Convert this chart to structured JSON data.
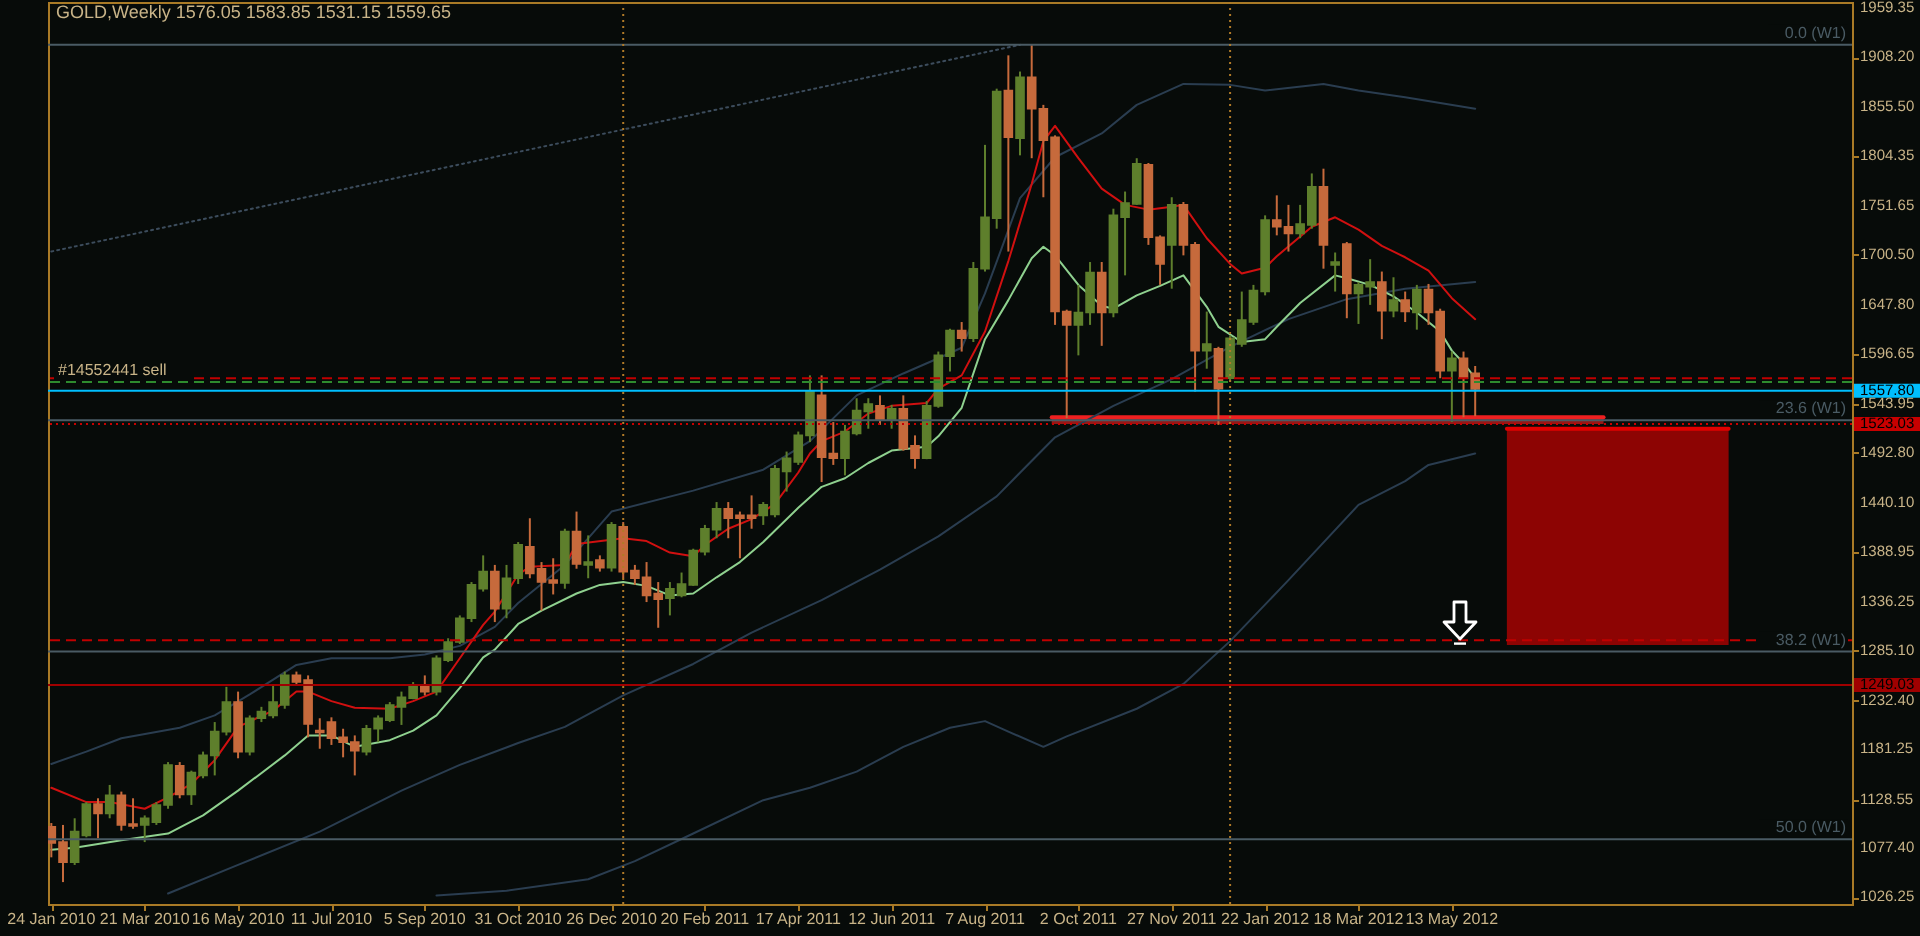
{
  "chart_data": {
    "type": "candlestick",
    "title": "GOLD,Weekly 1576.05 1583.85 1531.15 1559.65",
    "x": [
      "2010-01-24",
      "2010-01-31",
      "2010-02-07",
      "2010-02-14",
      "2010-02-21",
      "2010-02-28",
      "2010-03-07",
      "2010-03-14",
      "2010-03-21",
      "2010-03-28",
      "2010-04-04",
      "2010-04-11",
      "2010-04-18",
      "2010-04-25",
      "2010-05-02",
      "2010-05-09",
      "2010-05-16",
      "2010-05-23",
      "2010-05-30",
      "2010-06-06",
      "2010-06-13",
      "2010-06-20",
      "2010-06-27",
      "2010-07-04",
      "2010-07-11",
      "2010-07-18",
      "2010-07-25",
      "2010-08-01",
      "2010-08-08",
      "2010-08-15",
      "2010-08-22",
      "2010-08-29",
      "2010-09-05",
      "2010-09-12",
      "2010-09-19",
      "2010-09-26",
      "2010-10-03",
      "2010-10-10",
      "2010-10-17",
      "2010-10-24",
      "2010-10-31",
      "2010-11-07",
      "2010-11-14",
      "2010-11-21",
      "2010-11-28",
      "2010-12-05",
      "2010-12-12",
      "2010-12-19",
      "2010-12-26",
      "2011-01-02",
      "2011-01-09",
      "2011-01-16",
      "2011-01-23",
      "2011-01-30",
      "2011-02-06",
      "2011-02-13",
      "2011-02-20",
      "2011-02-27",
      "2011-03-06",
      "2011-03-13",
      "2011-03-20",
      "2011-03-27",
      "2011-04-03",
      "2011-04-10",
      "2011-04-17",
      "2011-04-24",
      "2011-05-01",
      "2011-05-08",
      "2011-05-15",
      "2011-05-22",
      "2011-05-29",
      "2011-06-05",
      "2011-06-12",
      "2011-06-19",
      "2011-06-26",
      "2011-07-03",
      "2011-07-10",
      "2011-07-17",
      "2011-07-24",
      "2011-07-31",
      "2011-08-07",
      "2011-08-14",
      "2011-08-21",
      "2011-08-28",
      "2011-09-04",
      "2011-09-11",
      "2011-09-18",
      "2011-09-25",
      "2011-10-02",
      "2011-10-09",
      "2011-10-16",
      "2011-10-23",
      "2011-10-30",
      "2011-11-06",
      "2011-11-13",
      "2011-11-20",
      "2011-11-27",
      "2011-12-04",
      "2011-12-11",
      "2011-12-18",
      "2011-12-25",
      "2012-01-01",
      "2012-01-08",
      "2012-01-15",
      "2012-01-22",
      "2012-01-29",
      "2012-02-05",
      "2012-02-12",
      "2012-02-19",
      "2012-02-26",
      "2012-03-04",
      "2012-03-11",
      "2012-03-18",
      "2012-03-25",
      "2012-04-01",
      "2012-04-08",
      "2012-04-15",
      "2012-04-22",
      "2012-04-29",
      "2012-05-06",
      "2012-05-13",
      "2012-05-20",
      "2012-05-27"
    ],
    "ohlc": [
      [
        1100,
        1104,
        1068,
        1083
      ],
      [
        1084,
        1102,
        1042,
        1063
      ],
      [
        1063,
        1109,
        1060,
        1095
      ],
      [
        1091,
        1126,
        1089,
        1124
      ],
      [
        1124,
        1130,
        1088,
        1114
      ],
      [
        1114,
        1144,
        1109,
        1133
      ],
      [
        1133,
        1137,
        1096,
        1102
      ],
      [
        1103,
        1130,
        1098,
        1101
      ],
      [
        1102,
        1112,
        1084,
        1109
      ],
      [
        1105,
        1126,
        1102,
        1123
      ],
      [
        1123,
        1168,
        1119,
        1165
      ],
      [
        1164,
        1168,
        1130,
        1134
      ],
      [
        1134,
        1159,
        1123,
        1157
      ],
      [
        1154,
        1179,
        1151,
        1175
      ],
      [
        1175,
        1210,
        1154,
        1200
      ],
      [
        1200,
        1247,
        1196,
        1231
      ],
      [
        1231,
        1242,
        1172,
        1179
      ],
      [
        1179,
        1217,
        1175,
        1214
      ],
      [
        1214,
        1226,
        1210,
        1221
      ],
      [
        1217,
        1249,
        1214,
        1231
      ],
      [
        1228,
        1263,
        1224,
        1259
      ],
      [
        1259,
        1263,
        1249,
        1252
      ],
      [
        1254,
        1259,
        1194,
        1208
      ],
      [
        1201,
        1214,
        1182,
        1199
      ],
      [
        1210,
        1215,
        1186,
        1193
      ],
      [
        1194,
        1203,
        1173,
        1189
      ],
      [
        1189,
        1196,
        1154,
        1180
      ],
      [
        1179,
        1207,
        1175,
        1203
      ],
      [
        1203,
        1217,
        1189,
        1214
      ],
      [
        1212,
        1231,
        1210,
        1228
      ],
      [
        1226,
        1242,
        1207,
        1236
      ],
      [
        1235,
        1252,
        1234,
        1249
      ],
      [
        1249,
        1259,
        1238,
        1242
      ],
      [
        1242,
        1280,
        1238,
        1277
      ],
      [
        1275,
        1298,
        1273,
        1294
      ],
      [
        1294,
        1322,
        1292,
        1319
      ],
      [
        1319,
        1357,
        1315,
        1354
      ],
      [
        1350,
        1385,
        1347,
        1368
      ],
      [
        1368,
        1375,
        1315,
        1329
      ],
      [
        1329,
        1375,
        1319,
        1361
      ],
      [
        1361,
        1399,
        1355,
        1396
      ],
      [
        1394,
        1424,
        1361,
        1366
      ],
      [
        1371,
        1378,
        1327,
        1357
      ],
      [
        1359,
        1382,
        1344,
        1356
      ],
      [
        1356,
        1413,
        1350,
        1410
      ],
      [
        1410,
        1431,
        1371,
        1376
      ],
      [
        1375,
        1406,
        1361,
        1378
      ],
      [
        1380,
        1385,
        1368,
        1372
      ],
      [
        1372,
        1420,
        1368,
        1417
      ],
      [
        1415,
        1420,
        1361,
        1368
      ],
      [
        1369,
        1375,
        1354,
        1361
      ],
      [
        1362,
        1378,
        1336,
        1343
      ],
      [
        1345,
        1357,
        1309,
        1339
      ],
      [
        1340,
        1357,
        1322,
        1350
      ],
      [
        1343,
        1367,
        1341,
        1355
      ],
      [
        1354,
        1392,
        1353,
        1390
      ],
      [
        1389,
        1417,
        1385,
        1413
      ],
      [
        1412,
        1441,
        1403,
        1434
      ],
      [
        1434,
        1441,
        1403,
        1424
      ],
      [
        1427,
        1431,
        1382,
        1424
      ],
      [
        1427,
        1448,
        1413,
        1424
      ],
      [
        1427,
        1441,
        1417,
        1438
      ],
      [
        1428,
        1480,
        1425,
        1476
      ],
      [
        1473,
        1494,
        1452,
        1487
      ],
      [
        1483,
        1515,
        1480,
        1511
      ],
      [
        1511,
        1574,
        1504,
        1557
      ],
      [
        1553,
        1574,
        1462,
        1488
      ],
      [
        1492,
        1525,
        1480,
        1487
      ],
      [
        1487,
        1522,
        1469,
        1515
      ],
      [
        1513,
        1550,
        1511,
        1537
      ],
      [
        1536,
        1550,
        1518,
        1544
      ],
      [
        1542,
        1553,
        1522,
        1528
      ],
      [
        1528,
        1543,
        1518,
        1539
      ],
      [
        1539,
        1553,
        1495,
        1497
      ],
      [
        1500,
        1511,
        1476,
        1487
      ],
      [
        1487,
        1547,
        1486,
        1542
      ],
      [
        1542,
        1599,
        1540,
        1595
      ],
      [
        1594,
        1623,
        1578,
        1621
      ],
      [
        1621,
        1630,
        1599,
        1613
      ],
      [
        1613,
        1693,
        1609,
        1686
      ],
      [
        1686,
        1816,
        1683,
        1740
      ],
      [
        1739,
        1875,
        1728,
        1872
      ],
      [
        1873,
        1910,
        1704,
        1824
      ],
      [
        1823,
        1893,
        1805,
        1887
      ],
      [
        1887,
        1921,
        1802,
        1854
      ],
      [
        1854,
        1858,
        1761,
        1821
      ],
      [
        1824,
        1826,
        1627,
        1641
      ],
      [
        1641,
        1643,
        1529,
        1627
      ],
      [
        1627,
        1669,
        1595,
        1640
      ],
      [
        1640,
        1693,
        1627,
        1682
      ],
      [
        1682,
        1693,
        1605,
        1640
      ],
      [
        1640,
        1749,
        1635,
        1742
      ],
      [
        1740,
        1767,
        1679,
        1755
      ],
      [
        1754,
        1802,
        1753,
        1796
      ],
      [
        1795,
        1797,
        1711,
        1719
      ],
      [
        1719,
        1721,
        1669,
        1691
      ],
      [
        1711,
        1761,
        1665,
        1753
      ],
      [
        1753,
        1756,
        1700,
        1711
      ],
      [
        1711,
        1714,
        1557,
        1600
      ],
      [
        1600,
        1641,
        1581,
        1607
      ],
      [
        1602,
        1604,
        1522,
        1560
      ],
      [
        1571,
        1616,
        1567,
        1613
      ],
      [
        1607,
        1662,
        1604,
        1632
      ],
      [
        1630,
        1669,
        1627,
        1663
      ],
      [
        1662,
        1742,
        1658,
        1737
      ],
      [
        1737,
        1763,
        1721,
        1730
      ],
      [
        1730,
        1753,
        1704,
        1723
      ],
      [
        1723,
        1753,
        1718,
        1733
      ],
      [
        1732,
        1786,
        1728,
        1772
      ],
      [
        1772,
        1791,
        1686,
        1711
      ],
      [
        1690,
        1703,
        1662,
        1693
      ],
      [
        1712,
        1714,
        1634,
        1660
      ],
      [
        1660,
        1672,
        1628,
        1669
      ],
      [
        1667,
        1696,
        1648,
        1672
      ],
      [
        1672,
        1683,
        1612,
        1642
      ],
      [
        1642,
        1677,
        1635,
        1653
      ],
      [
        1653,
        1662,
        1630,
        1641
      ],
      [
        1640,
        1669,
        1622,
        1664
      ],
      [
        1664,
        1670,
        1627,
        1640
      ],
      [
        1641,
        1644,
        1571,
        1579
      ],
      [
        1579,
        1599,
        1525,
        1592
      ],
      [
        1592,
        1599,
        1530,
        1571
      ],
      [
        1576.05,
        1583.85,
        1531.15,
        1559.65
      ]
    ],
    "colors": [
      "#c66a3c",
      "#c66a3c",
      "#5e7f2c",
      "#5e7f2c",
      "#c66a3c",
      "#5e7f2c",
      "#c66a3c",
      "#c66a3c",
      "#5e7f2c",
      "#5e7f2c",
      "#5e7f2c",
      "#c66a3c",
      "#5e7f2c",
      "#5e7f2c",
      "#5e7f2c",
      "#5e7f2c",
      "#c66a3c",
      "#5e7f2c",
      "#5e7f2c",
      "#5e7f2c",
      "#5e7f2c",
      "#c66a3c",
      "#c66a3c",
      "#c66a3c",
      "#c66a3c",
      "#c66a3c",
      "#c66a3c",
      "#5e7f2c",
      "#5e7f2c",
      "#5e7f2c",
      "#5e7f2c",
      "#5e7f2c",
      "#c66a3c",
      "#5e7f2c",
      "#5e7f2c",
      "#5e7f2c",
      "#5e7f2c",
      "#5e7f2c",
      "#c66a3c",
      "#5e7f2c",
      "#5e7f2c",
      "#c66a3c",
      "#c66a3c",
      "#c66a3c",
      "#5e7f2c",
      "#c66a3c",
      "#5e7f2c",
      "#c66a3c",
      "#5e7f2c",
      "#c66a3c",
      "#c66a3c",
      "#c66a3c",
      "#c66a3c",
      "#5e7f2c",
      "#5e7f2c",
      "#5e7f2c",
      "#5e7f2c",
      "#5e7f2c",
      "#c66a3c",
      "#c66a3c",
      "#c66a3c",
      "#5e7f2c",
      "#5e7f2c",
      "#5e7f2c",
      "#5e7f2c",
      "#5e7f2c",
      "#c66a3c",
      "#c66a3c",
      "#5e7f2c",
      "#5e7f2c",
      "#5e7f2c",
      "#c66a3c",
      "#5e7f2c",
      "#c66a3c",
      "#c66a3c",
      "#5e7f2c",
      "#5e7f2c",
      "#5e7f2c",
      "#c66a3c",
      "#5e7f2c",
      "#5e7f2c",
      "#5e7f2c",
      "#c66a3c",
      "#5e7f2c",
      "#c66a3c",
      "#c66a3c",
      "#c66a3c",
      "#c66a3c",
      "#5e7f2c",
      "#5e7f2c",
      "#c66a3c",
      "#5e7f2c",
      "#5e7f2c",
      "#5e7f2c",
      "#c66a3c",
      "#c66a3c",
      "#5e7f2c",
      "#c66a3c",
      "#c66a3c",
      "#5e7f2c",
      "#c66a3c",
      "#5e7f2c",
      "#5e7f2c",
      "#5e7f2c",
      "#5e7f2c",
      "#c66a3c",
      "#c66a3c",
      "#5e7f2c",
      "#5e7f2c",
      "#c66a3c",
      "#5e7f2c",
      "#c66a3c",
      "#5e7f2c",
      "#5e7f2c",
      "#c66a3c",
      "#5e7f2c",
      "#c66a3c",
      "#5e7f2c",
      "#c66a3c",
      "#c66a3c",
      "#5e7f2c",
      "#c66a3c",
      "#c66a3c"
    ],
    "series": [
      {
        "type": "line",
        "color": "#e00000",
        "x": [
          "2012-06-15",
          "2012-10-26"
        ],
        "values": [
          1518,
          1518
        ],
        "lower": [
          1291,
          1291
        ],
        "upper": [
          1518,
          1518
        ]
      },
      {
        "type": "line",
        "color": "#ee2020",
        "x": [
          "2011-09-16",
          "2012-08-12"
        ],
        "values": [
          1530,
          1530
        ],
        "lower": [
          1523,
          1523
        ],
        "upper": [
          1530,
          1530
        ]
      },
      {
        "type": "line",
        "color": "#2a3d50",
        "x": [
          "2010-01-24",
          "2010-02-14",
          "2010-03-07",
          "2010-04-11",
          "2010-05-02",
          "2010-05-23",
          "2010-06-20",
          "2010-07-11",
          "2010-08-15",
          "2010-09-05",
          "2010-09-26",
          "2010-10-17",
          "2010-10-31",
          "2010-11-28",
          "2010-12-26",
          "2011-02-13",
          "2011-03-27",
          "2011-04-24",
          "2011-05-22",
          "2011-06-19",
          "2011-07-10",
          "2011-07-24",
          "2011-08-07",
          "2011-08-28",
          "2011-09-18",
          "2011-10-16",
          "2011-11-06",
          "2011-12-04",
          "2012-01-01",
          "2012-01-22",
          "2012-02-26",
          "2012-03-18",
          "2012-04-15",
          "2012-05-06",
          "2012-05-27"
        ],
        "values": [
          1166,
          1179,
          1193,
          1204,
          1217,
          1239,
          1270,
          1277,
          1277,
          1281,
          1290,
          1310,
          1335,
          1375,
          1431,
          1453,
          1475,
          1505,
          1553,
          1576,
          1592,
          1603,
          1660,
          1760,
          1803,
          1828,
          1858,
          1880,
          1879,
          1873,
          1880,
          1873,
          1866,
          1860,
          1854
        ]
      },
      {
        "type": "line",
        "color": "#2a3d50",
        "x": [
          "2010-04-04",
          "2010-05-16",
          "2010-07-04",
          "2010-08-22",
          "2010-09-26",
          "2010-10-31",
          "2010-11-28",
          "2011-01-02",
          "2011-02-13",
          "2011-03-20",
          "2011-05-01",
          "2011-06-05",
          "2011-07-10",
          "2011-08-14",
          "2011-09-18",
          "2011-10-23",
          "2011-11-27",
          "2012-01-01",
          "2012-02-05",
          "2012-03-11",
          "2012-04-15",
          "2012-05-27"
        ],
        "values": [
          1030,
          1060,
          1095,
          1138,
          1165,
          1188,
          1205,
          1238,
          1271,
          1304,
          1338,
          1370,
          1405,
          1447,
          1509,
          1542,
          1570,
          1604,
          1633,
          1654,
          1665,
          1672
        ]
      },
      {
        "type": "line",
        "color": "#2a3d50",
        "x": [
          "2010-09-12",
          "2010-10-24",
          "2010-12-12",
          "2011-01-09",
          "2011-02-13",
          "2011-03-27",
          "2011-04-24",
          "2011-05-22",
          "2011-06-19",
          "2011-07-17",
          "2011-08-07",
          "2011-08-21",
          "2011-09-11",
          "2011-09-25",
          "2011-11-06",
          "2011-12-04",
          "2012-01-01",
          "2012-02-05",
          "2012-03-18",
          "2012-04-15",
          "2012-04-29",
          "2012-05-27"
        ],
        "values": [
          1028,
          1033,
          1045,
          1064,
          1093,
          1128,
          1141,
          1158,
          1184,
          1204,
          1211,
          1200,
          1184,
          1195,
          1224,
          1250,
          1295,
          1359,
          1438,
          1463,
          1480,
          1492
        ]
      },
      {
        "type": "line",
        "color": "#8fd18f",
        "x": [
          "2010-01-24",
          "2010-02-07",
          "2010-03-07",
          "2010-04-04",
          "2010-04-25",
          "2010-05-16",
          "2010-06-13",
          "2010-06-27",
          "2010-07-11",
          "2010-07-25",
          "2010-08-15",
          "2010-08-29",
          "2010-09-12",
          "2010-09-26",
          "2010-10-10",
          "2010-10-17",
          "2010-10-31",
          "2010-11-14",
          "2010-12-05",
          "2010-12-19",
          "2011-01-02",
          "2011-01-16",
          "2011-01-30",
          "2011-02-13",
          "2011-02-27",
          "2011-03-13",
          "2011-03-27",
          "2011-04-17",
          "2011-05-01",
          "2011-05-15",
          "2011-05-29",
          "2011-06-12",
          "2011-07-03",
          "2011-07-10",
          "2011-07-24",
          "2011-08-07",
          "2011-08-21",
          "2011-09-04",
          "2011-09-11",
          "2011-09-18",
          "2011-10-02",
          "2011-10-16",
          "2011-10-23",
          "2011-11-06",
          "2011-11-20",
          "2011-12-04",
          "2011-12-18",
          "2011-12-25",
          "2012-01-08",
          "2012-01-22",
          "2012-01-29",
          "2012-02-12",
          "2012-03-04",
          "2012-03-11",
          "2012-03-25",
          "2012-04-08",
          "2012-04-22",
          "2012-05-06",
          "2012-05-13",
          "2012-05-20",
          "2012-05-27"
        ],
        "values": [
          1076,
          1078,
          1086,
          1093,
          1112,
          1138,
          1175,
          1196,
          1196,
          1184,
          1191,
          1201,
          1217,
          1246,
          1278,
          1286,
          1313,
          1327,
          1345,
          1354,
          1357,
          1353,
          1343,
          1345,
          1362,
          1378,
          1399,
          1435,
          1457,
          1466,
          1482,
          1495,
          1499,
          1510,
          1540,
          1612,
          1653,
          1697,
          1709,
          1700,
          1669,
          1647,
          1644,
          1658,
          1668,
          1679,
          1646,
          1625,
          1609,
          1612,
          1625,
          1650,
          1679,
          1676,
          1669,
          1657,
          1640,
          1620,
          1600,
          1587,
          1571
        ]
      },
      {
        "type": "line",
        "color": "#d01010",
        "x": [
          "2010-01-24",
          "2010-02-14",
          "2010-02-28",
          "2010-03-21",
          "2010-04-04",
          "2010-04-18",
          "2010-05-02",
          "2010-05-16",
          "2010-06-06",
          "2010-06-20",
          "2010-06-27",
          "2010-07-11",
          "2010-07-25",
          "2010-08-15",
          "2010-08-29",
          "2010-09-12",
          "2010-09-26",
          "2010-10-10",
          "2010-10-17",
          "2010-10-31",
          "2010-11-07",
          "2010-11-28",
          "2010-12-05",
          "2011-01-02",
          "2011-01-16",
          "2011-01-30",
          "2011-02-13",
          "2011-02-20",
          "2011-03-06",
          "2011-03-20",
          "2011-04-03",
          "2011-04-17",
          "2011-04-24",
          "2011-05-01",
          "2011-05-15",
          "2011-05-29",
          "2011-06-12",
          "2011-07-03",
          "2011-07-10",
          "2011-07-24",
          "2011-08-07",
          "2011-08-21",
          "2011-09-04",
          "2011-09-11",
          "2011-09-18",
          "2011-10-02",
          "2011-10-16",
          "2011-10-30",
          "2011-11-13",
          "2011-11-27",
          "2011-12-04",
          "2011-12-18",
          "2012-01-01",
          "2012-01-08",
          "2012-01-22",
          "2012-01-29",
          "2012-02-19",
          "2012-03-04",
          "2012-03-18",
          "2012-04-01",
          "2012-04-15",
          "2012-04-29",
          "2012-05-13",
          "2012-05-27"
        ],
        "values": [
          1141,
          1126,
          1126,
          1119,
          1131,
          1145,
          1170,
          1205,
          1222,
          1242,
          1242,
          1232,
          1225,
          1224,
          1232,
          1242,
          1277,
          1312,
          1326,
          1365,
          1373,
          1375,
          1397,
          1403,
          1400,
          1388,
          1384,
          1396,
          1413,
          1423,
          1439,
          1472,
          1492,
          1505,
          1515,
          1534,
          1542,
          1545,
          1560,
          1574,
          1620,
          1694,
          1775,
          1820,
          1836,
          1802,
          1770,
          1753,
          1748,
          1751,
          1753,
          1718,
          1691,
          1681,
          1687,
          1699,
          1730,
          1740,
          1727,
          1710,
          1698,
          1684,
          1655,
          1633
        ]
      },
      {
        "type": "line",
        "color": "#3c4c5c",
        "line_style": "dotted",
        "x": [
          "2010-01-24",
          "2011-08-28"
        ],
        "values": [
          1704,
          1921
        ]
      }
    ],
    "ref_lines": [
      {
        "axis": "y",
        "value": 1921,
        "label": "0.0 (W1)",
        "color": "#4a5b64"
      },
      {
        "axis": "y",
        "value": 1527,
        "label": "23.6 (W1)",
        "color": "#4a5b64"
      },
      {
        "axis": "y",
        "value": 1284,
        "label": "38.2 (W1)",
        "color": "#4a5b64"
      },
      {
        "axis": "y",
        "value": 1087,
        "label": "50.0 (W1)",
        "color": "#4a5b64"
      },
      {
        "axis": "y",
        "value": 1571,
        "color": "#c00000",
        "line_style": "dashed"
      },
      {
        "axis": "y",
        "value": 1567,
        "label": "#14552441 sell",
        "color": "#2e8b2e",
        "line_style": "dashed"
      },
      {
        "axis": "y",
        "value": 1557.8,
        "color": "#00bfff"
      },
      {
        "axis": "y",
        "value": 1523.03,
        "color": "#c80000",
        "line_style": "dotted"
      },
      {
        "axis": "y",
        "value": 1296,
        "color": "#c00000",
        "line_style": "dashed"
      },
      {
        "axis": "y",
        "value": 1249.03,
        "color": "#a00000"
      },
      {
        "axis": "x",
        "value": "2011-01-02",
        "color": "#b07a28",
        "line_style": "dotted"
      },
      {
        "axis": "x",
        "value": "2012-01-01",
        "color": "#b07a28",
        "line_style": "dotted"
      }
    ],
    "xlim": [
      "2010-01-22",
      "2013-01-08"
    ],
    "xticks": [
      {
        "value": "2010-01-24",
        "label": "24 Jan 2010"
      },
      {
        "value": "2010-03-21",
        "label": "21 Mar 2010"
      },
      {
        "value": "2010-05-16",
        "label": "16 May 2010"
      },
      {
        "value": "2010-07-11",
        "label": "11 Jul 2010"
      },
      {
        "value": "2010-09-05",
        "label": "5 Sep 2010"
      },
      {
        "value": "2010-10-31",
        "label": "31 Oct 2010"
      },
      {
        "value": "2010-12-26",
        "label": "26 Dec 2010"
      },
      {
        "value": "2011-02-20",
        "label": "20 Feb 2011"
      },
      {
        "value": "2011-04-17",
        "label": "17 Apr 2011"
      },
      {
        "value": "2011-06-12",
        "label": "12 Jun 2011"
      },
      {
        "value": "2011-08-07",
        "label": "7 Aug 2011"
      },
      {
        "value": "2011-10-02",
        "label": "2 Oct 2011"
      },
      {
        "value": "2011-11-27",
        "label": "27 Nov 2011"
      },
      {
        "value": "2012-01-22",
        "label": "22 Jan 2012"
      },
      {
        "value": "2012-03-18",
        "label": "18 Mar 2012"
      },
      {
        "value": "2012-05-13",
        "label": "13 May 2012"
      }
    ],
    "ylim": [
      1019,
      1966
    ],
    "yticks": [
      1026.25,
      {
        "value": 1077.4,
        "label": "1077.40"
      },
      1128.55,
      1181.25,
      {
        "value": 1232.4,
        "label": "1232.40"
      },
      1249.03,
      {
        "value": 1285.1,
        "label": "1285.10"
      },
      1336.25,
      1388.95,
      {
        "value": 1440.1,
        "label": "1440.10"
      },
      {
        "value": 1492.8,
        "label": "1492.80"
      },
      1523.03,
      1543.95,
      {
        "value": 1557.8,
        "label": "1557.80"
      },
      1596.65,
      {
        "value": 1647.8,
        "label": "1647.80"
      },
      {
        "value": 1700.5,
        "label": "1700.50"
      },
      1751.65,
      1804.35,
      {
        "value": 1855.5,
        "label": "1855.50"
      },
      {
        "value": 1908.2,
        "label": "1908.20"
      },
      1959.35
    ]
  }
}
